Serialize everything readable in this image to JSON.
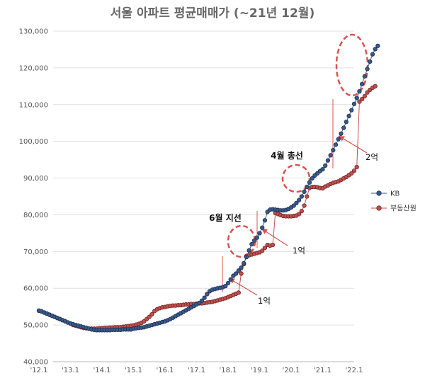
{
  "chart_data": {
    "type": "line",
    "title": "서울 아파트 평균매매가 (~21년 12월)",
    "xlabel": "",
    "ylabel": "",
    "x_ticks": [
      "'12.1",
      "'13.1",
      "'14.1",
      "'15.1",
      "'16.1",
      "'17.1",
      "'18.1",
      "'19.1",
      "'20.1",
      "'21.1",
      "'22.1"
    ],
    "ylim": [
      40000,
      130000
    ],
    "y_ticks": [
      40000,
      50000,
      60000,
      70000,
      80000,
      90000,
      100000,
      110000,
      120000,
      130000
    ],
    "grid": true,
    "legend": "right",
    "colors": {
      "kb": "#3a5a8c",
      "kb_edge": "#1f3355",
      "boodong": "#c0504d",
      "boodong_edge": "#7a2a2a",
      "annotation": "#d9534f",
      "grid": "#e0e0e0"
    },
    "series": [
      {
        "name": "KB",
        "key": "kb",
        "values": [
          53900,
          53700,
          53400,
          53100,
          52800,
          52500,
          52200,
          51900,
          51600,
          51300,
          51000,
          50700,
          50400,
          50200,
          50000,
          49800,
          49600,
          49400,
          49200,
          49000,
          48800,
          48700,
          48600,
          48600,
          48600,
          48600,
          48600,
          48600,
          48700,
          48700,
          48700,
          48700,
          48800,
          48800,
          48800,
          48800,
          49000,
          49100,
          49200,
          49300,
          49400,
          49600,
          49800,
          50000,
          50200,
          50400,
          50600,
          50800,
          51000,
          51300,
          51600,
          52000,
          52400,
          52800,
          53200,
          53600,
          54000,
          54400,
          54800,
          55200,
          55600,
          56000,
          56600,
          57400,
          58400,
          59200,
          59600,
          59800,
          60000,
          60100,
          60300,
          60600,
          61400,
          62400,
          63400,
          64000,
          64800,
          65600,
          66800,
          68500,
          70300,
          72000,
          73000,
          73800,
          75000,
          76500,
          78500,
          80800,
          81400,
          81500,
          81400,
          81300,
          81200,
          81200,
          81300,
          81600,
          82000,
          82500,
          83200,
          84000,
          85000,
          86300,
          87600,
          88800,
          89900,
          90700,
          91300,
          91900,
          92400,
          93400,
          94800,
          96200,
          97600,
          99100,
          100600,
          102100,
          103700,
          105300,
          106900,
          108500,
          110200,
          111800,
          113600,
          115600,
          117700,
          119700,
          121700,
          123700,
          125100,
          126000
        ]
      },
      {
        "name": "부동산원",
        "key": "boodong",
        "values": [
          53900,
          53700,
          53400,
          53100,
          52800,
          52500,
          52200,
          51900,
          51600,
          51300,
          51000,
          50700,
          50400,
          50000,
          49800,
          49600,
          49400,
          49200,
          49100,
          49000,
          49000,
          49000,
          49000,
          49100,
          49100,
          49200,
          49200,
          49300,
          49300,
          49400,
          49400,
          49400,
          49500,
          49600,
          49700,
          49800,
          49900,
          50100,
          50300,
          50600,
          51000,
          51600,
          52200,
          52900,
          53800,
          54300,
          54600,
          54800,
          54900,
          55100,
          55200,
          55300,
          55300,
          55400,
          55400,
          55500,
          55600,
          55600,
          55700,
          55700,
          55800,
          55900,
          55900,
          56000,
          56100,
          56200,
          56300,
          56500,
          56700,
          56900,
          57100,
          57300,
          57600,
          57900,
          58200,
          58500,
          58800,
          64000,
          66600,
          68800,
          69000,
          69200,
          69400,
          69600,
          69800,
          70200,
          71000,
          71800,
          71600,
          71800,
          80500,
          80200,
          79900,
          79700,
          79600,
          79600,
          79600,
          79700,
          79800,
          80200,
          81000,
          82500,
          85000,
          87300,
          87600,
          87600,
          87500,
          87300,
          87200,
          87700,
          88000,
          88400,
          88700,
          88900,
          89100,
          89500,
          89900,
          90300,
          90800,
          91300,
          92000,
          93000,
          110800,
          111500,
          112300,
          113300,
          114000,
          114600,
          115000
        ]
      }
    ],
    "annotations": [
      {
        "text": "6월 지선",
        "style": "bold"
      },
      {
        "text": "4월 총선",
        "style": "bold"
      },
      {
        "text": "1억",
        "style": "normal"
      },
      {
        "text": "1억",
        "style": "normal"
      },
      {
        "text": "2억",
        "style": "normal"
      }
    ]
  }
}
